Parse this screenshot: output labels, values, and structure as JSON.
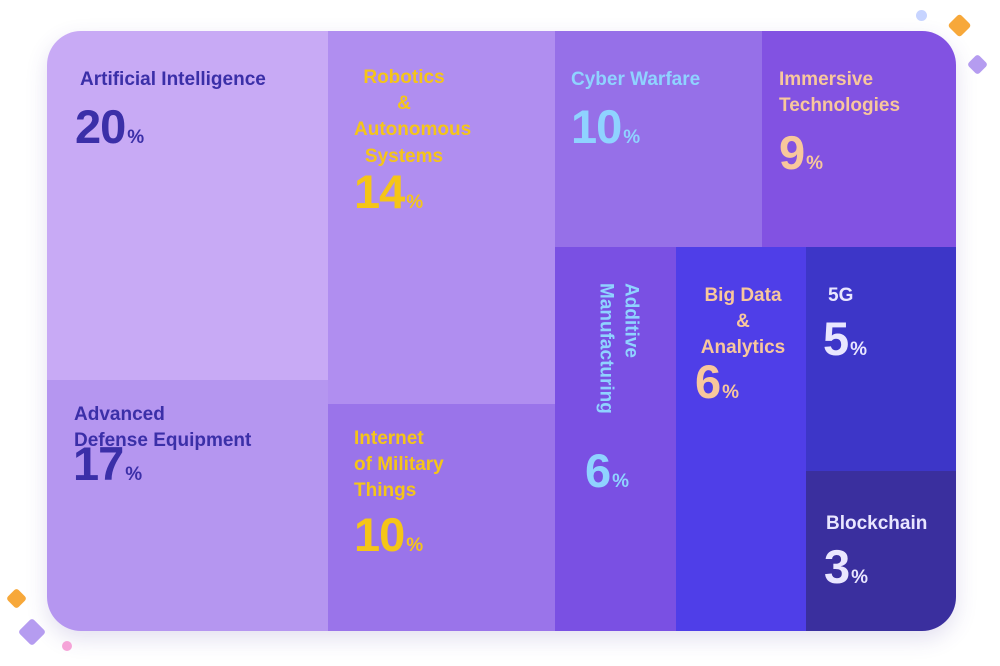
{
  "chart_data": {
    "type": "treemap",
    "unit": "%",
    "items": [
      {
        "name": "Artificial Intelligence",
        "label": "Artificial Intelligence",
        "value": 20,
        "color": "#c8aaf5",
        "text_color": "#3b2fa8"
      },
      {
        "name": "Advanced Defense Equipment",
        "label": "Advanced\nDefense Equipment",
        "value": 17,
        "color": "#b596f0",
        "text_color": "#3b2fa8"
      },
      {
        "name": "Robotics & Autonomous Systems",
        "label": "Robotics\n&\nAutonomous\nSystems",
        "value": 14,
        "color": "#b08ef0",
        "text_color": "#f5c518"
      },
      {
        "name": "Internet of Military Things",
        "label": "Internet\nof Military\nThings",
        "value": 10,
        "color": "#9a74ea",
        "text_color": "#f5c518"
      },
      {
        "name": "Cyber Warfare",
        "label": "Cyber Warfare",
        "value": 10,
        "color": "#9670e8",
        "text_color": "#8fd3ff"
      },
      {
        "name": "Immersive Technologies",
        "label": "Immersive\nTechnologies",
        "value": 9,
        "color": "#8252e2",
        "text_color": "#f8c79c"
      },
      {
        "name": "Additive Manufacturing",
        "label": "Additive\nManufacturing",
        "value": 6,
        "color": "#7a50e3",
        "text_color": "#8fd3ff"
      },
      {
        "name": "Big Data & Analytics",
        "label": "Big Data\n&\nAnalytics",
        "value": 6,
        "color": "#4f3ee8",
        "text_color": "#f8c79c"
      },
      {
        "name": "5G",
        "label": "5G",
        "value": 5,
        "color": "#3d36c8",
        "text_color": "#e9e6ff"
      },
      {
        "name": "Blockchain",
        "label": "Blockchain",
        "value": 3,
        "color": "#3a2f9e",
        "text_color": "#e9e6ff"
      }
    ]
  },
  "decorations": {
    "colors": {
      "orange": "#f7a83a",
      "lavender": "#b59cf0",
      "pink": "#f5a3d8",
      "light_blue": "#c7d4ff"
    }
  }
}
